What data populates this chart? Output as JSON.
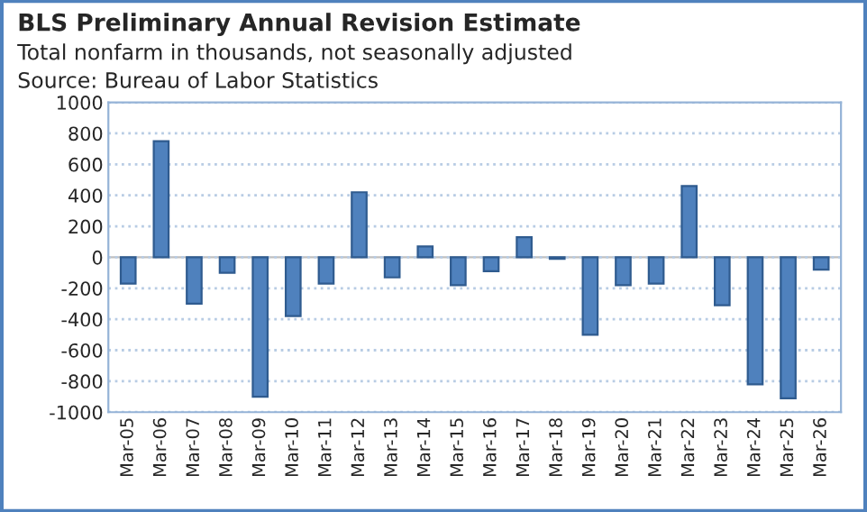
{
  "chart_data": {
    "type": "bar",
    "title": "BLS Preliminary Annual Revision Estimate",
    "subtitle": "Total nonfarm in thousands, not seasonally adjusted",
    "annotations": [
      "Source: Bureau of Labor Statistics"
    ],
    "categories": [
      "Mar-05",
      "Mar-06",
      "Mar-07",
      "Mar-08",
      "Mar-09",
      "Mar-10",
      "Mar-11",
      "Mar-12",
      "Mar-13",
      "Mar-14",
      "Mar-15",
      "Mar-16",
      "Mar-17",
      "Mar-18",
      "Mar-19",
      "Mar-20",
      "Mar-21",
      "Mar-22",
      "Mar-23",
      "Mar-24",
      "Mar-25",
      "Mar-26"
    ],
    "values": [
      -170,
      750,
      -300,
      -100,
      -900,
      -380,
      -170,
      420,
      -130,
      70,
      -180,
      -90,
      130,
      -10,
      -500,
      -180,
      -170,
      460,
      -310,
      -820,
      -910,
      -80
    ],
    "color": "#4f81bd",
    "ylim": [
      -1000,
      1000
    ],
    "yticks": [
      -1000,
      -800,
      -600,
      -400,
      -200,
      0,
      200,
      400,
      600,
      800,
      1000
    ],
    "grid": "y",
    "legend": false
  }
}
